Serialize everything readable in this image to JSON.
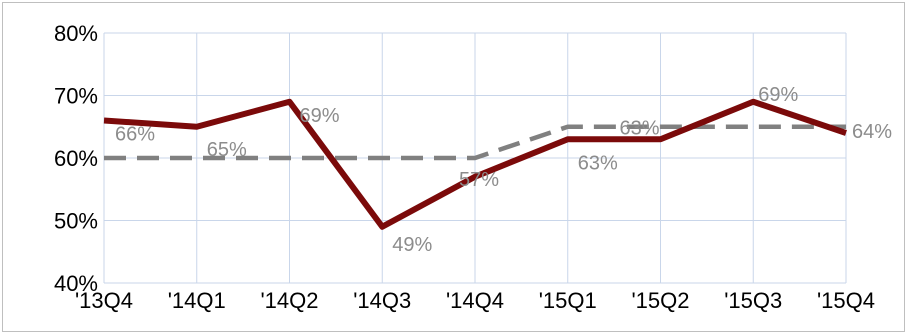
{
  "chart_data": {
    "type": "line",
    "categories": [
      "'13Q4",
      "'14Q1",
      "'14Q2",
      "'14Q3",
      "'14Q4",
      "'15Q1",
      "'15Q2",
      "'15Q3",
      "'15Q4"
    ],
    "series": [
      {
        "style": "solid",
        "color": "#7b0a0a",
        "values": [
          66,
          65,
          69,
          49,
          57,
          63,
          63,
          69,
          64
        ],
        "labels": [
          "66%",
          "65%",
          "69%",
          "49%",
          "57%",
          "63%",
          "63%",
          "69%",
          "64%"
        ]
      },
      {
        "style": "dashed",
        "color": "#808080",
        "values": [
          60,
          60,
          60,
          60,
          60,
          65,
          65,
          65,
          65
        ]
      }
    ],
    "y_ticks": [
      "40%",
      "50%",
      "60%",
      "70%",
      "80%"
    ],
    "ylim": [
      40,
      80
    ],
    "grid": true,
    "title": "",
    "xlabel": "",
    "ylabel": ""
  }
}
